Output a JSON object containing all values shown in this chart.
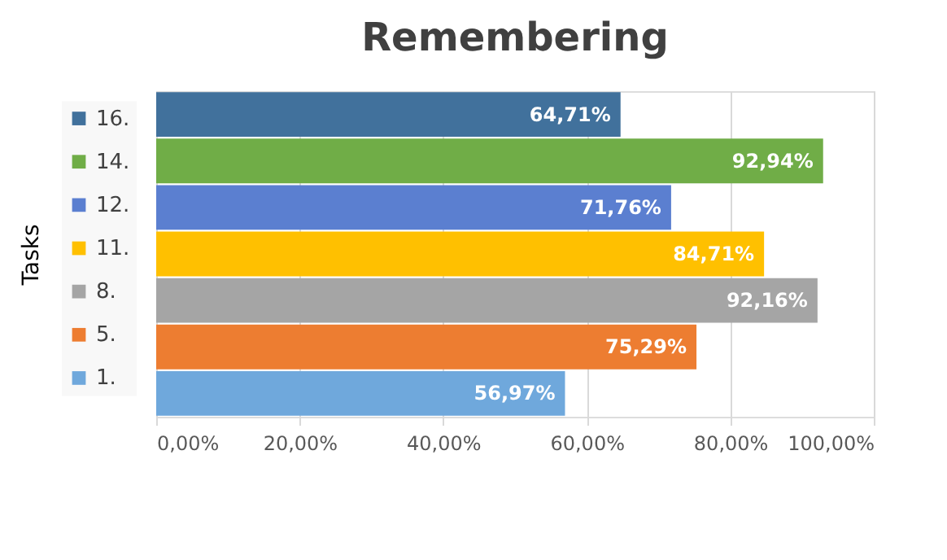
{
  "chart_data": {
    "type": "bar",
    "orientation": "horizontal",
    "title": "Remembering",
    "ylabel": "Tasks",
    "categories": [
      null,
      null,
      null,
      null,
      null,
      null,
      null
    ],
    "series": [
      {
        "name": "16.",
        "color": "#41719c",
        "values": [
          64.71,
          null,
          null,
          null,
          null,
          null,
          null
        ],
        "value_labels": [
          "64,71%",
          null,
          null,
          null,
          null,
          null,
          null
        ]
      },
      {
        "name": "14.",
        "color": "#70ad47",
        "values": [
          null,
          92.94,
          null,
          null,
          null,
          null,
          null
        ],
        "value_labels": [
          null,
          "92,94%",
          null,
          null,
          null,
          null,
          null
        ]
      },
      {
        "name": "12.",
        "color": "#5b7fd0",
        "values": [
          null,
          null,
          71.76,
          null,
          null,
          null,
          null
        ],
        "value_labels": [
          null,
          null,
          "71,76%",
          null,
          null,
          null,
          null
        ]
      },
      {
        "name": "11.",
        "color": "#ffc000",
        "values": [
          null,
          null,
          null,
          84.71,
          null,
          null,
          null
        ],
        "value_labels": [
          null,
          null,
          null,
          "84,71%",
          null,
          null,
          null
        ]
      },
      {
        "name": "8.",
        "color": "#a5a5a5",
        "values": [
          null,
          null,
          null,
          null,
          92.16,
          null,
          null
        ],
        "value_labels": [
          null,
          null,
          null,
          null,
          "92,16%",
          null,
          null
        ]
      },
      {
        "name": "5.",
        "color": "#ed7d31",
        "values": [
          null,
          null,
          null,
          null,
          null,
          75.29,
          null
        ],
        "value_labels": [
          null,
          null,
          null,
          null,
          null,
          "75,29%",
          null
        ]
      },
      {
        "name": "1.",
        "color": "#6fa8dc",
        "values": [
          null,
          null,
          null,
          null,
          null,
          null,
          56.97
        ],
        "value_labels": [
          null,
          null,
          null,
          null,
          null,
          null,
          "56,97%"
        ]
      }
    ],
    "xlim": [
      0,
      100
    ],
    "xticks": [
      {
        "value": 0,
        "label": "0,00%"
      },
      {
        "value": 20,
        "label": "20,00%"
      },
      {
        "value": 40,
        "label": "40,00%"
      },
      {
        "value": 60,
        "label": "60,00%"
      },
      {
        "value": 80,
        "label": "80,00%"
      },
      {
        "value": 100,
        "label": "100,00%"
      }
    ],
    "grid": "x",
    "legend": "left"
  }
}
